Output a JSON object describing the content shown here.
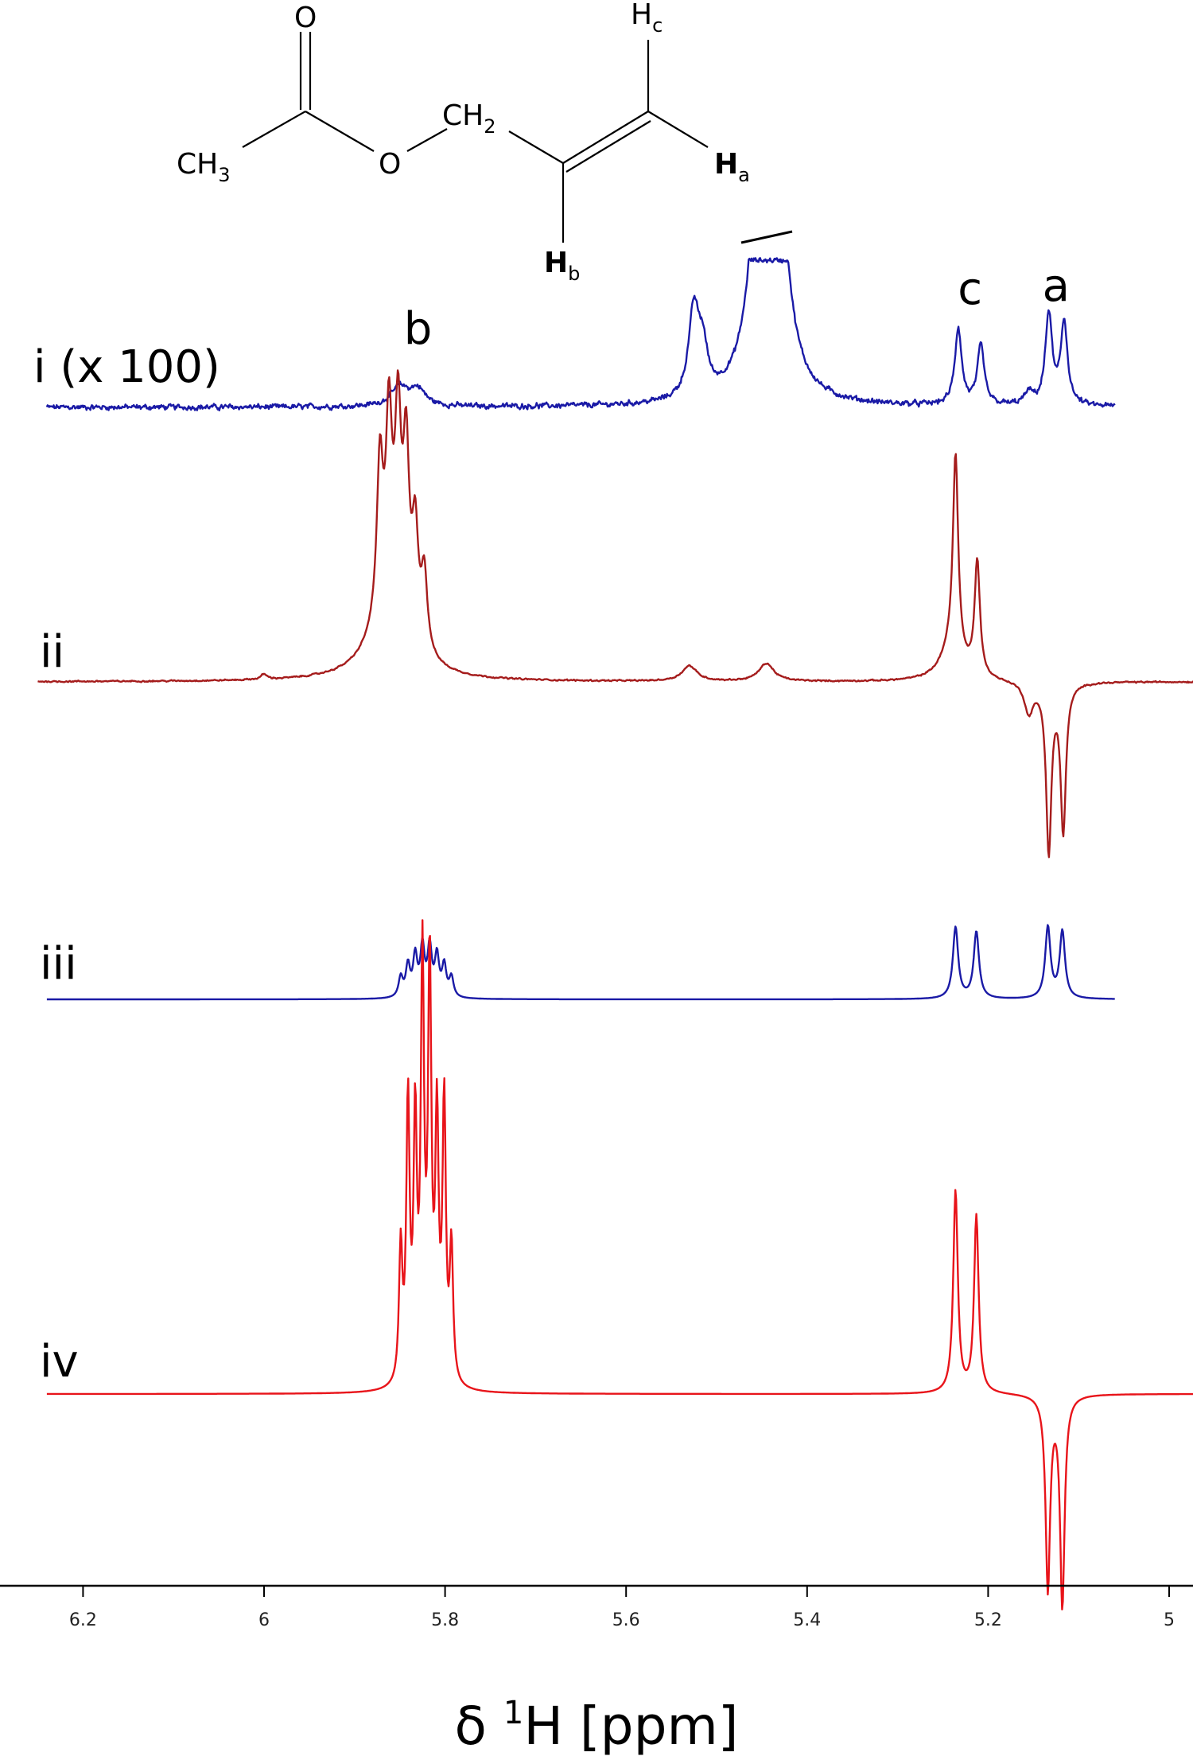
{
  "chart_data": {
    "type": "line",
    "title": "",
    "xlabel": {
      "symbol": "δ",
      "superscript": "1",
      "rest": "H [ppm]"
    },
    "xlim": [
      6.25,
      4.97
    ],
    "x_direction": "reversed",
    "ticks": [
      {
        "value": 6.2,
        "label": "6.2"
      },
      {
        "value": 6.0,
        "label": "6"
      },
      {
        "value": 5.8,
        "label": "5.8"
      },
      {
        "value": 5.6,
        "label": "5.6"
      },
      {
        "value": 5.4,
        "label": "5.4"
      },
      {
        "value": 5.2,
        "label": "5.2"
      },
      {
        "value": 5.0,
        "label": "5"
      }
    ],
    "peak_labels": [
      {
        "name": "b",
        "ppm": 5.83
      },
      {
        "name": "c",
        "ppm": 5.22
      },
      {
        "name": "a",
        "ppm": 5.125
      }
    ],
    "series": [
      {
        "name": "i (x 100)",
        "color": "#1a1aa6",
        "x_range": [
          6.24,
          5.06
        ],
        "noise": 0.025,
        "peaks": [
          [
            5.85,
            0.13,
            0.012
          ],
          [
            5.83,
            0.11,
            0.01
          ],
          [
            5.525,
            0.6,
            0.007
          ],
          [
            5.515,
            0.28,
            0.006
          ],
          [
            5.45,
            1.8,
            0.012
          ],
          [
            5.435,
            1.8,
            0.012
          ],
          [
            5.233,
            0.52,
            0.0045
          ],
          [
            5.208,
            0.4,
            0.0045
          ],
          [
            5.133,
            0.62,
            0.0045
          ],
          [
            5.116,
            0.56,
            0.0045
          ],
          [
            5.155,
            0.08,
            0.006
          ]
        ],
        "clip": 1.0,
        "clip_note": "tall peak at 5.44 ppm is truncated"
      },
      {
        "name": "ii",
        "color": "#a51c1c",
        "x_range": [
          6.25,
          4.94
        ],
        "noise": 0.004,
        "peaks": [
          [
            5.872,
            0.6,
            0.004
          ],
          [
            5.862,
            0.7,
            0.004
          ],
          [
            5.852,
            0.72,
            0.004
          ],
          [
            5.843,
            0.66,
            0.004
          ],
          [
            5.833,
            0.42,
            0.004
          ],
          [
            5.823,
            0.3,
            0.004
          ],
          [
            5.86,
            0.28,
            0.025
          ],
          [
            6.0,
            0.02,
            0.004
          ],
          [
            5.53,
            0.06,
            0.01
          ],
          [
            5.445,
            0.07,
            0.01
          ],
          [
            5.236,
            0.78,
            0.0035
          ],
          [
            5.212,
            0.45,
            0.0035
          ],
          [
            5.24,
            0.12,
            0.015
          ],
          [
            5.133,
            -0.66,
            0.0035
          ],
          [
            5.117,
            -0.58,
            0.0035
          ],
          [
            5.155,
            -0.12,
            0.006
          ]
        ]
      },
      {
        "name": "iii",
        "color": "#1a1aa6",
        "x_range": [
          6.24,
          5.06
        ],
        "noise": 0,
        "peaks": [
          [
            5.849,
            0.09,
            0.0028
          ],
          [
            5.841,
            0.14,
            0.0028
          ],
          [
            5.833,
            0.18,
            0.0028
          ],
          [
            5.825,
            0.22,
            0.0028
          ],
          [
            5.817,
            0.22,
            0.0028
          ],
          [
            5.809,
            0.18,
            0.0028
          ],
          [
            5.801,
            0.14,
            0.0028
          ],
          [
            5.793,
            0.09,
            0.0028
          ],
          [
            5.236,
            0.32,
            0.0035
          ],
          [
            5.213,
            0.3,
            0.0035
          ],
          [
            5.134,
            0.32,
            0.0035
          ],
          [
            5.118,
            0.3,
            0.0035
          ]
        ]
      },
      {
        "name": "iv",
        "color": "#e8141a",
        "x_range": [
          6.24,
          4.94
        ],
        "noise": 0,
        "peaks": [
          [
            5.849,
            0.32,
            0.0022
          ],
          [
            5.841,
            0.66,
            0.0022
          ],
          [
            5.833,
            0.6,
            0.0022
          ],
          [
            5.825,
            0.98,
            0.0022
          ],
          [
            5.817,
            0.98,
            0.0022
          ],
          [
            5.809,
            0.6,
            0.0022
          ],
          [
            5.801,
            0.66,
            0.0022
          ],
          [
            5.793,
            0.32,
            0.0022
          ],
          [
            5.236,
            0.48,
            0.003
          ],
          [
            5.213,
            0.42,
            0.003
          ],
          [
            5.134,
            -0.46,
            0.003
          ],
          [
            5.118,
            -0.5,
            0.003
          ]
        ]
      }
    ]
  },
  "molecule": {
    "o_top": "O",
    "ch3": "CH",
    "ch3_sub": "3",
    "o_ester": "O",
    "ch2": "CH",
    "ch2_sub": "2",
    "h_a": "H",
    "h_a_sub": "a",
    "h_b": "H",
    "h_b_sub": "b",
    "h_c": "H",
    "h_c_sub": "c"
  }
}
